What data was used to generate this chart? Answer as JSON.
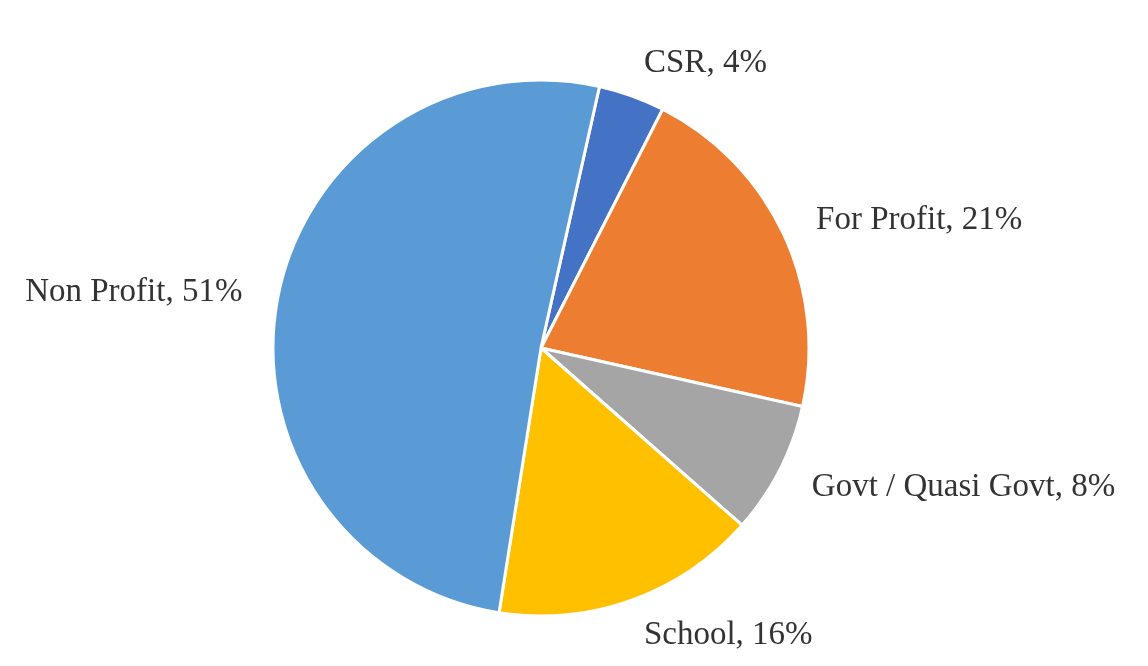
{
  "chart_data": {
    "type": "pie",
    "categories": [
      "CSR",
      "For Profit",
      "Govt / Quasi Govt",
      "School",
      "Non Profit"
    ],
    "values": [
      4,
      21,
      8,
      16,
      51
    ],
    "value_labels": [
      "4%",
      "21%",
      "8%",
      "16%",
      "51%"
    ],
    "colors": [
      "#4472c4",
      "#ed7d31",
      "#a5a5a5",
      "#ffc000",
      "#5b9bd5"
    ]
  }
}
